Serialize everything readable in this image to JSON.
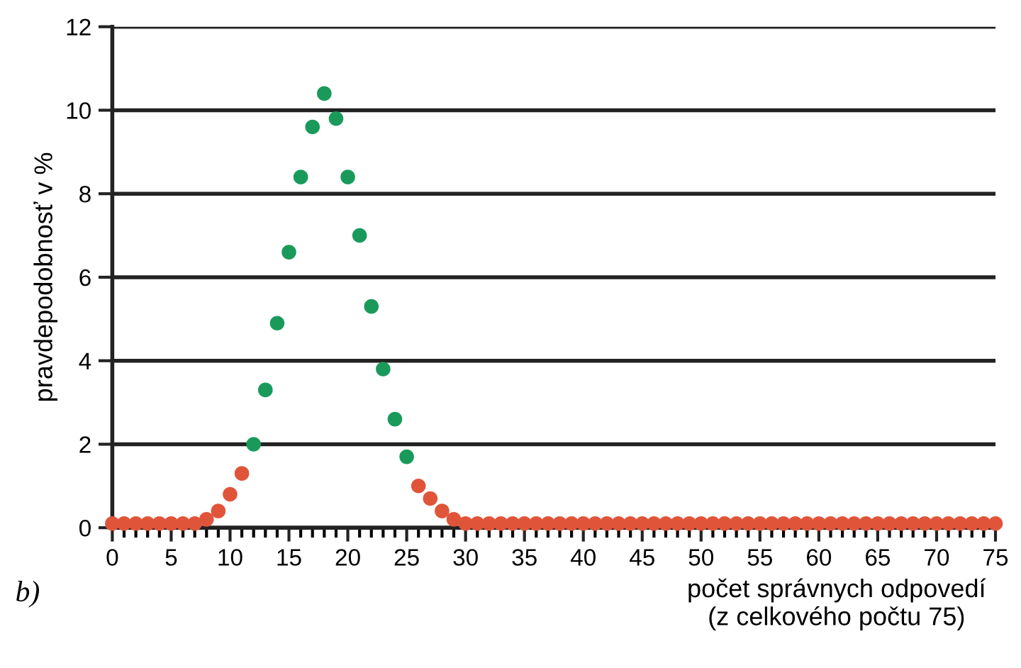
{
  "chart_data": {
    "type": "scatter",
    "ylabel": "pravdepodobnosť v %",
    "xlabel": "počet správnych odpovedí\n(z celkového počtu 75)",
    "annotations": [
      "b)"
    ],
    "x": [
      0,
      1,
      2,
      3,
      4,
      5,
      6,
      7,
      8,
      9,
      10,
      11,
      12,
      13,
      14,
      15,
      16,
      17,
      18,
      19,
      20,
      21,
      22,
      23,
      24,
      25,
      26,
      27,
      28,
      29,
      30,
      31,
      32,
      33,
      34,
      35,
      36,
      37,
      38,
      39,
      40,
      41,
      42,
      43,
      44,
      45,
      46,
      47,
      48,
      49,
      50,
      51,
      52,
      53,
      54,
      55,
      56,
      57,
      58,
      59,
      60,
      61,
      62,
      63,
      64,
      65,
      66,
      67,
      68,
      69,
      70,
      71,
      72,
      73,
      74,
      75
    ],
    "series": [
      {
        "color": "#e0553a",
        "values": [
          0.1,
          0.1,
          0.1,
          0.1,
          0.1,
          0.1,
          0.1,
          0.1,
          0.2,
          0.4,
          0.8,
          1.3,
          null,
          null,
          null,
          null,
          null,
          null,
          null,
          null,
          null,
          null,
          null,
          null,
          null,
          null,
          1.0,
          0.7,
          0.4,
          0.2,
          0.1,
          0.1,
          0.1,
          0.1,
          0.1,
          0.1,
          0.1,
          0.1,
          0.1,
          0.1,
          0.1,
          0.1,
          0.1,
          0.1,
          0.1,
          0.1,
          0.1,
          0.1,
          0.1,
          0.1,
          0.1,
          0.1,
          0.1,
          0.1,
          0.1,
          0.1,
          0.1,
          0.1,
          0.1,
          0.1,
          0.1,
          0.1,
          0.1,
          0.1,
          0.1,
          0.1,
          0.1,
          0.1,
          0.1,
          0.1,
          0.1,
          0.1,
          0.1,
          0.1,
          0.1,
          0.1
        ]
      },
      {
        "color": "#1a9a5a",
        "values": [
          null,
          null,
          null,
          null,
          null,
          null,
          null,
          null,
          null,
          null,
          null,
          null,
          2.0,
          3.3,
          4.9,
          6.6,
          8.4,
          9.6,
          10.4,
          9.8,
          8.4,
          7.0,
          5.3,
          3.8,
          2.6,
          1.7,
          null,
          null,
          null,
          null,
          null,
          null,
          null,
          null,
          null,
          null,
          null,
          null,
          null,
          null,
          null,
          null,
          null,
          null,
          null,
          null,
          null,
          null,
          null,
          null,
          null,
          null,
          null,
          null,
          null,
          null,
          null,
          null,
          null,
          null,
          null,
          null,
          null,
          null,
          null,
          null,
          null,
          null,
          null,
          null,
          null,
          null,
          null,
          null,
          null,
          null
        ]
      }
    ],
    "xlim": [
      0,
      75
    ],
    "ylim": [
      0,
      12
    ],
    "xticks": [
      0,
      5,
      10,
      15,
      20,
      25,
      30,
      35,
      40,
      45,
      50,
      55,
      60,
      65,
      70,
      75
    ],
    "yticks": [
      0,
      2,
      4,
      6,
      8,
      10,
      12
    ],
    "grid": "y",
    "marker": "circle",
    "legend": false
  }
}
